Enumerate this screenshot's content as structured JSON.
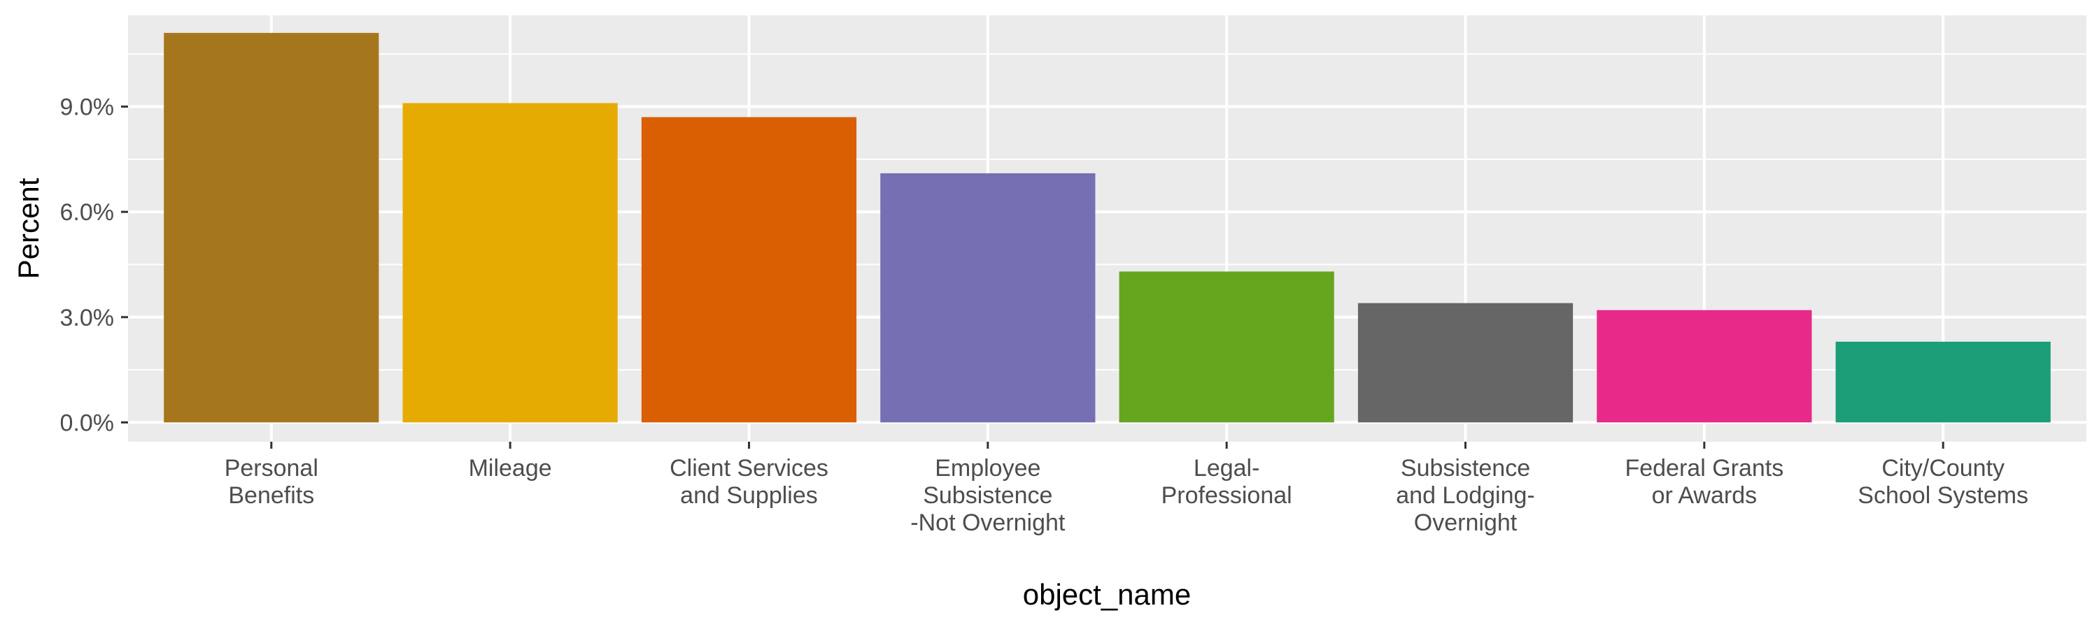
{
  "chart_data": {
    "type": "bar",
    "title": "",
    "xlabel": "object_name",
    "ylabel": "Percent",
    "ylim": [
      -0.55,
      11.6
    ],
    "y_ticks": [
      0,
      3,
      6,
      9
    ],
    "y_tick_labels": [
      "0.0%",
      "3.0%",
      "6.0%",
      "9.0%"
    ],
    "categories": [
      [
        "Personal",
        "Benefits"
      ],
      [
        "Mileage"
      ],
      [
        "Client Services",
        "and Supplies"
      ],
      [
        "Employee",
        "Subsistence",
        "-Not Overnight"
      ],
      [
        "Legal-",
        "Professional"
      ],
      [
        "Subsistence",
        "and Lodging-",
        "Overnight"
      ],
      [
        "Federal Grants",
        "or Awards"
      ],
      [
        "City/County",
        "School Systems"
      ]
    ],
    "values": [
      11.1,
      9.1,
      8.7,
      7.1,
      4.3,
      3.4,
      3.2,
      2.3
    ],
    "colors": [
      "#A6761D",
      "#E6AB02",
      "#D95F02",
      "#7570B3",
      "#66A61E",
      "#666666",
      "#E7298A",
      "#1B9E77"
    ],
    "grid": true,
    "legend": "none",
    "background": "#EBEBEB"
  }
}
